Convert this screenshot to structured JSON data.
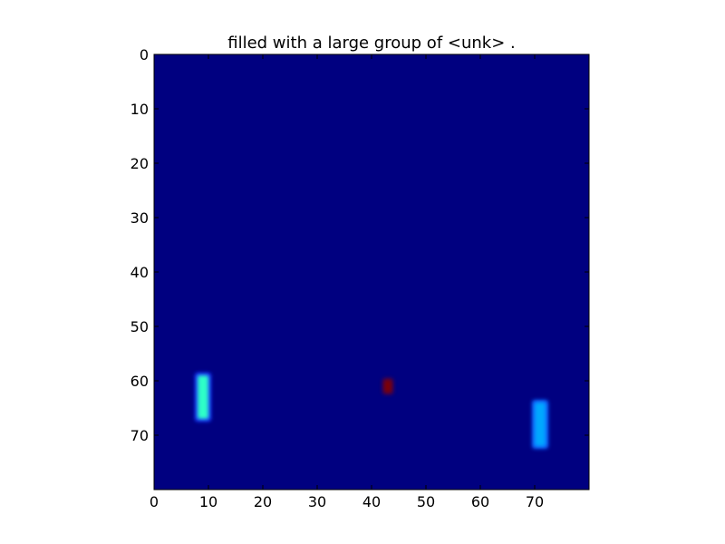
{
  "chart_data": {
    "type": "heatmap",
    "title": "filled with a large group of <unk> .",
    "xlabel": "",
    "ylabel": "",
    "xlim": [
      0,
      80
    ],
    "ylim": [
      80,
      0
    ],
    "x_ticks": [
      0,
      10,
      20,
      30,
      40,
      50,
      60,
      70
    ],
    "y_ticks": [
      0,
      10,
      20,
      30,
      40,
      50,
      60,
      70
    ],
    "background_color": "#000080",
    "grid": false,
    "colormap": "jet",
    "hotspots": [
      {
        "x0": 8,
        "x1": 10,
        "y0": 59,
        "y1": 67,
        "core_color": "#2effc8",
        "edge_color": "#1436ff",
        "intensity": 0.55
      },
      {
        "x0": 42.5,
        "x1": 43.5,
        "y0": 60,
        "y1": 62,
        "core_color": "#800000",
        "edge_color": "#5a0030",
        "intensity": 1.0
      },
      {
        "x0": 70,
        "x1": 72,
        "y0": 64,
        "y1": 72,
        "core_color": "#00a8ff",
        "edge_color": "#1060ff",
        "intensity": 0.35
      }
    ]
  }
}
